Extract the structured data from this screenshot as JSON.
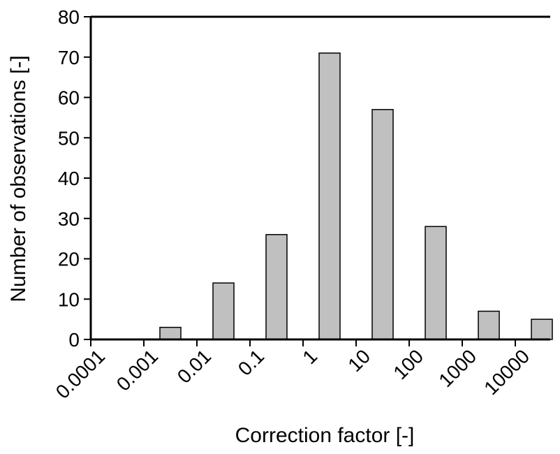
{
  "chart_data": {
    "type": "bar",
    "title": "",
    "xlabel": "Correction factor [-]",
    "ylabel": "Number of observations [-]",
    "x_scale": "log",
    "x_ticks": [
      "0.0001",
      "0.001",
      "0.01",
      "0.1",
      "1",
      "10",
      "100",
      "1000",
      "10000"
    ],
    "categories": [
      "0.0001–0.001",
      "0.001–0.01",
      "0.01–0.1",
      "0.1–1",
      "1–10",
      "10–100",
      "100–1000",
      "1000–10000",
      "10000–100000"
    ],
    "values": [
      0,
      3,
      14,
      26,
      71,
      57,
      28,
      7,
      5
    ],
    "ylim": [
      0,
      80
    ],
    "y_ticks": [
      0,
      10,
      20,
      30,
      40,
      50,
      60,
      70,
      80
    ],
    "grid": false,
    "legend": "none",
    "bar_color": "#c0c0c0",
    "bar_edge_color": "#000000"
  }
}
